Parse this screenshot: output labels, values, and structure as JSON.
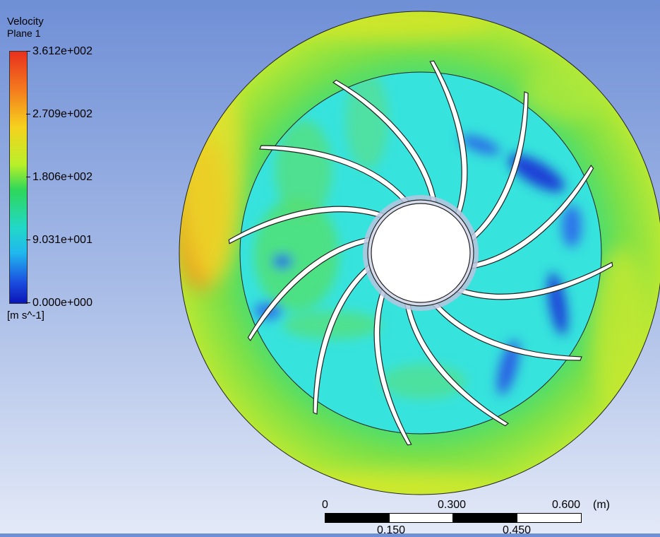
{
  "legend": {
    "title": "Velocity",
    "subtitle": "Plane 1",
    "ticks": [
      "3.612e+002",
      "2.709e+002",
      "1.806e+002",
      "9.031e+001",
      "0.000e+000"
    ],
    "unit": "[m s^-1]"
  },
  "scale_bar": {
    "top_labels": [
      "0",
      "0.300",
      "0.600",
      "(m)"
    ],
    "bottom_labels": [
      "0.150",
      "0.450"
    ]
  },
  "colors": {
    "background_top": "#6f8fd6",
    "background_bottom": "#e3e9f7",
    "volute_base": "#8cdc3c",
    "impeller_base": "#37e3dd",
    "hub": "#b9c4de",
    "low_velocity": "#1b4bde",
    "high_velocity": "#f48a1e"
  },
  "impeller": {
    "blade_count": 12
  }
}
